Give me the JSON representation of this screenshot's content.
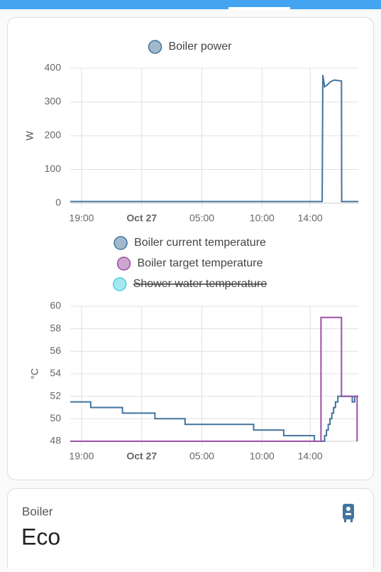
{
  "chart_data": [
    {
      "type": "line",
      "y_label": "W",
      "legend": "top",
      "xlim": [
        18.06,
        42
      ],
      "xticks": [
        {
          "value": 19,
          "label": "19:00"
        },
        {
          "value": 24,
          "label": "Oct 27"
        },
        {
          "value": 29,
          "label": "05:00"
        },
        {
          "value": 34,
          "label": "10:00"
        },
        {
          "value": 38,
          "label": "14:00"
        }
      ],
      "ylim": [
        0,
        400
      ],
      "yticks": [
        0,
        100,
        200,
        300,
        400
      ],
      "grid": true,
      "series": [
        {
          "name": "Boiler power",
          "color": "#44739e",
          "x": [
            18.06,
            39.0,
            39.05,
            39.2,
            39.4,
            39.7,
            40.0,
            40.6,
            40.62,
            42
          ],
          "values": [
            5,
            5,
            380,
            345,
            350,
            360,
            365,
            362,
            5,
            5
          ]
        }
      ]
    },
    {
      "type": "line",
      "y_label": "°C",
      "legend": "top",
      "xlim": [
        18.06,
        42
      ],
      "xticks": [
        {
          "value": 19,
          "label": "19:00"
        },
        {
          "value": 24,
          "label": "Oct 27"
        },
        {
          "value": 29,
          "label": "05:00"
        },
        {
          "value": 34,
          "label": "10:00"
        },
        {
          "value": 38,
          "label": "14:00"
        }
      ],
      "ylim": [
        48,
        60
      ],
      "yticks": [
        48,
        50,
        52,
        54,
        56,
        58,
        60
      ],
      "grid": true,
      "series": [
        {
          "name": "Boiler current temperature",
          "color": "#44739e",
          "x": [
            18.06,
            19.76,
            19.76,
            22.4,
            22.4,
            25.1,
            25.1,
            27.6,
            27.6,
            33.3,
            33.3,
            35.8,
            35.8,
            38.35,
            38.35,
            39.2,
            39.2,
            39.35,
            39.35,
            39.5,
            39.5,
            39.65,
            39.65,
            39.8,
            39.8,
            39.95,
            39.95,
            40.1,
            40.1,
            40.3,
            40.3,
            41.5,
            41.5,
            41.7,
            41.7,
            42
          ],
          "values": [
            51.5,
            51.5,
            51,
            51,
            50.5,
            50.5,
            50,
            50,
            49.5,
            49.5,
            49,
            49,
            48.5,
            48.5,
            48,
            48,
            48.5,
            48.5,
            49,
            49,
            49.5,
            49.5,
            50,
            50,
            50.5,
            50.5,
            51,
            51,
            51.5,
            51.5,
            52,
            52,
            51.5,
            51.5,
            52,
            52
          ]
        },
        {
          "name": "Boiler target temperature",
          "color": "#9c4fa6",
          "x": [
            18.06,
            38.9,
            38.9,
            40.6,
            40.6,
            41.9,
            41.9
          ],
          "values": [
            48,
            48,
            59,
            59,
            52,
            52,
            48
          ]
        },
        {
          "name": "Shower water temperature",
          "color": "#4dd0e1",
          "hidden": true,
          "x": [],
          "values": []
        }
      ]
    }
  ],
  "tile": {
    "name": "Boiler",
    "state": "Eco"
  }
}
